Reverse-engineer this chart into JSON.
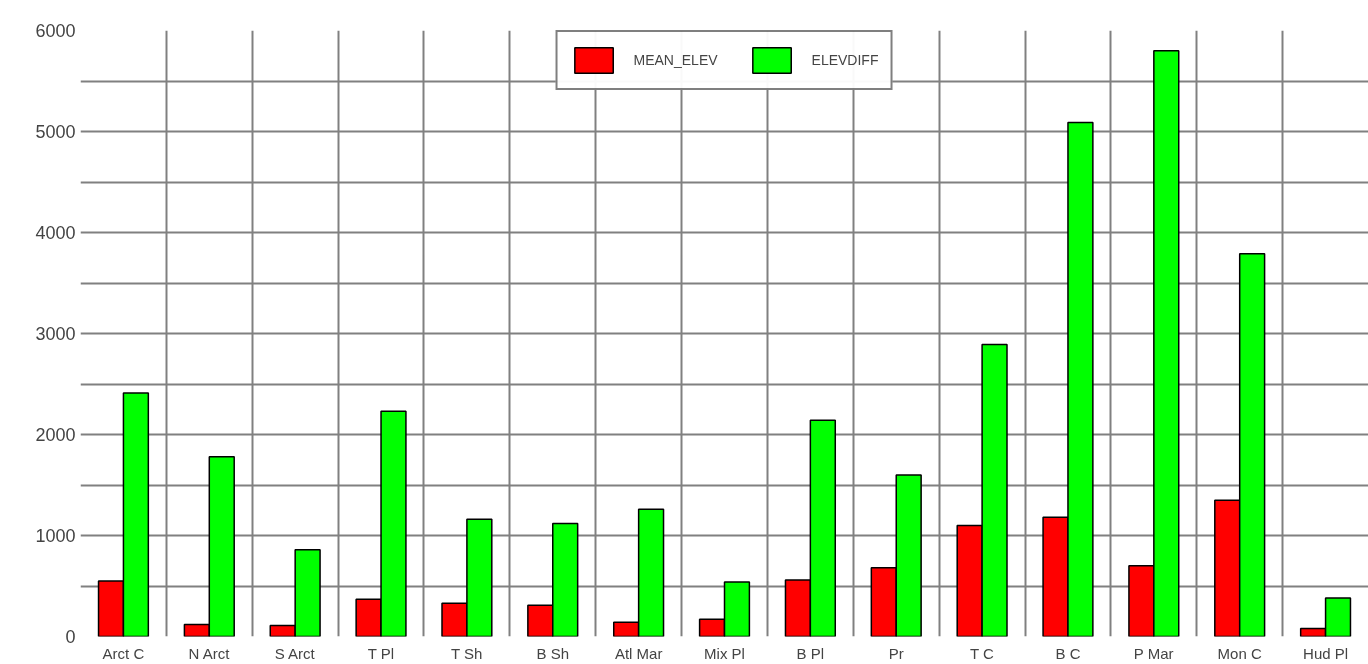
{
  "chart_data": {
    "type": "bar",
    "categories": [
      "Arct C",
      "N Arct",
      "S Arct",
      "T Pl",
      "T Sh",
      "B Sh",
      "Atl Mar",
      "Mix Pl",
      "B Pl",
      "Pr",
      "T C",
      "B C",
      "P Mar",
      "Mon C",
      "Hud Pl"
    ],
    "series": [
      {
        "name": "MEAN_ELEV",
        "color": "#ff0000",
        "values": [
          550,
          120,
          110,
          370,
          330,
          310,
          140,
          170,
          560,
          680,
          1100,
          1180,
          700,
          1350,
          80
        ]
      },
      {
        "name": "ELEVDIFF",
        "color": "#00ff00",
        "values": [
          2410,
          1780,
          860,
          2230,
          1160,
          1120,
          1260,
          540,
          2140,
          1600,
          2890,
          5090,
          5800,
          3790,
          380
        ]
      }
    ],
    "ylim": [
      0,
      6000
    ],
    "yticks": [
      0,
      {
        "value": 500,
        "label": null
      },
      1000,
      {
        "value": 1500,
        "label": null
      },
      2000,
      {
        "value": 2500,
        "label": null
      },
      3000,
      {
        "value": 3500,
        "label": null
      },
      4000,
      {
        "value": 4500,
        "label": null
      },
      5000,
      {
        "value": 5500,
        "label": null
      },
      6000
    ],
    "grid": true,
    "legend": "top"
  }
}
